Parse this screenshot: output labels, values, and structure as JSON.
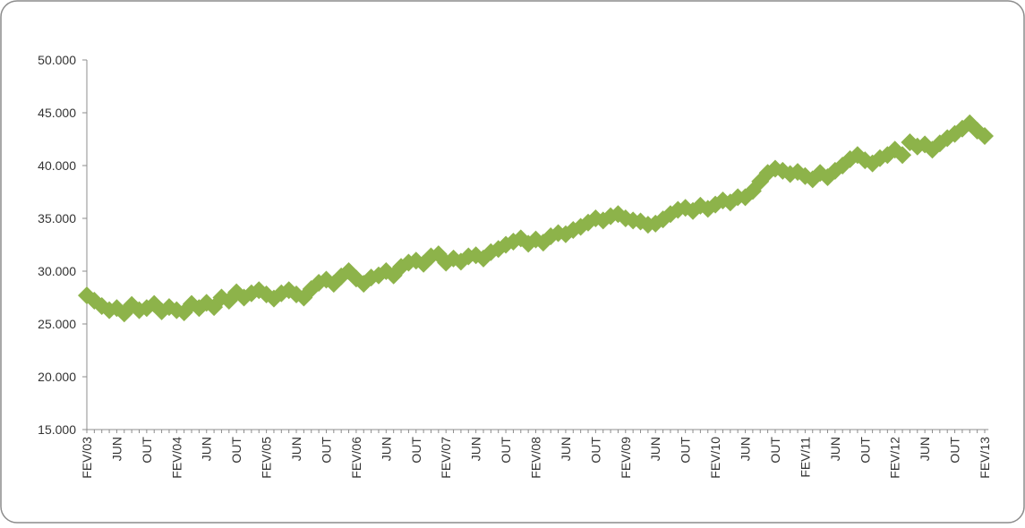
{
  "chart_data": {
    "type": "line",
    "marker": "diamond",
    "color": "#8db34a",
    "categories": [
      "FEV/03",
      null,
      null,
      null,
      "JUN",
      null,
      null,
      null,
      "OUT",
      null,
      null,
      null,
      "FEV/04",
      null,
      null,
      null,
      "JUN",
      null,
      null,
      null,
      "OUT",
      null,
      null,
      null,
      "FEV/05",
      null,
      null,
      null,
      "JUN",
      null,
      null,
      null,
      "OUT",
      null,
      null,
      null,
      "FEV/06",
      null,
      null,
      null,
      "JUN",
      null,
      null,
      null,
      "OUT",
      null,
      null,
      null,
      "FEV/07",
      null,
      null,
      null,
      "JUN",
      null,
      null,
      null,
      "OUT",
      null,
      null,
      null,
      "FEV/08",
      null,
      null,
      null,
      "JUN",
      null,
      null,
      null,
      "OUT",
      null,
      null,
      null,
      "FEV/09",
      null,
      null,
      null,
      "JUN",
      null,
      null,
      null,
      "OUT",
      null,
      null,
      null,
      "FEV/10",
      null,
      null,
      null,
      "JUN",
      null,
      null,
      null,
      "OUT",
      null,
      null,
      null,
      "FEV/11",
      null,
      null,
      null,
      "JUN",
      null,
      null,
      null,
      "OUT",
      null,
      null,
      null,
      "FEV/12",
      null,
      null,
      null,
      "JUN",
      null,
      null,
      null,
      "OUT",
      null,
      null,
      null,
      "FEV/13"
    ],
    "values": [
      27700,
      27200,
      26700,
      26300,
      26500,
      26000,
      26800,
      26300,
      26500,
      26900,
      26200,
      26600,
      26300,
      26100,
      26900,
      26500,
      27000,
      26600,
      27500,
      27200,
      28000,
      27500,
      27900,
      28200,
      27800,
      27400,
      27900,
      28200,
      27800,
      27500,
      28300,
      28900,
      29200,
      28800,
      29500,
      30000,
      29300,
      28800,
      29400,
      29600,
      30000,
      29600,
      30400,
      30800,
      31000,
      30700,
      31400,
      31600,
      30800,
      31200,
      30900,
      31400,
      31500,
      31200,
      31800,
      32100,
      32500,
      32800,
      33100,
      32600,
      33000,
      32700,
      33300,
      33600,
      33500,
      33900,
      34200,
      34600,
      35000,
      34800,
      35200,
      35400,
      35000,
      34800,
      34700,
      34400,
      34500,
      34900,
      35400,
      35800,
      36000,
      35700,
      36200,
      35900,
      36300,
      36700,
      36500,
      37000,
      37000,
      37600,
      38500,
      39300,
      39700,
      39500,
      39200,
      39400,
      39000,
      38700,
      39300,
      38900,
      39500,
      40000,
      40600,
      41000,
      40500,
      40200,
      40700,
      41000,
      41500,
      41000,
      42200,
      41800,
      42000,
      41500,
      42100,
      42600,
      43000,
      43500,
      44000,
      43300,
      42800
    ],
    "ylim": [
      15000,
      50000
    ],
    "yticks": [
      {
        "value": 15000,
        "label": "15.000"
      },
      {
        "value": 20000,
        "label": "20.000"
      },
      {
        "value": 25000,
        "label": "25.000"
      },
      {
        "value": 30000,
        "label": "30.000"
      },
      {
        "value": 35000,
        "label": "35.000"
      },
      {
        "value": 40000,
        "label": "40.000"
      },
      {
        "value": 45000,
        "label": "45.000"
      },
      {
        "value": 50000,
        "label": "50.000"
      }
    ]
  }
}
